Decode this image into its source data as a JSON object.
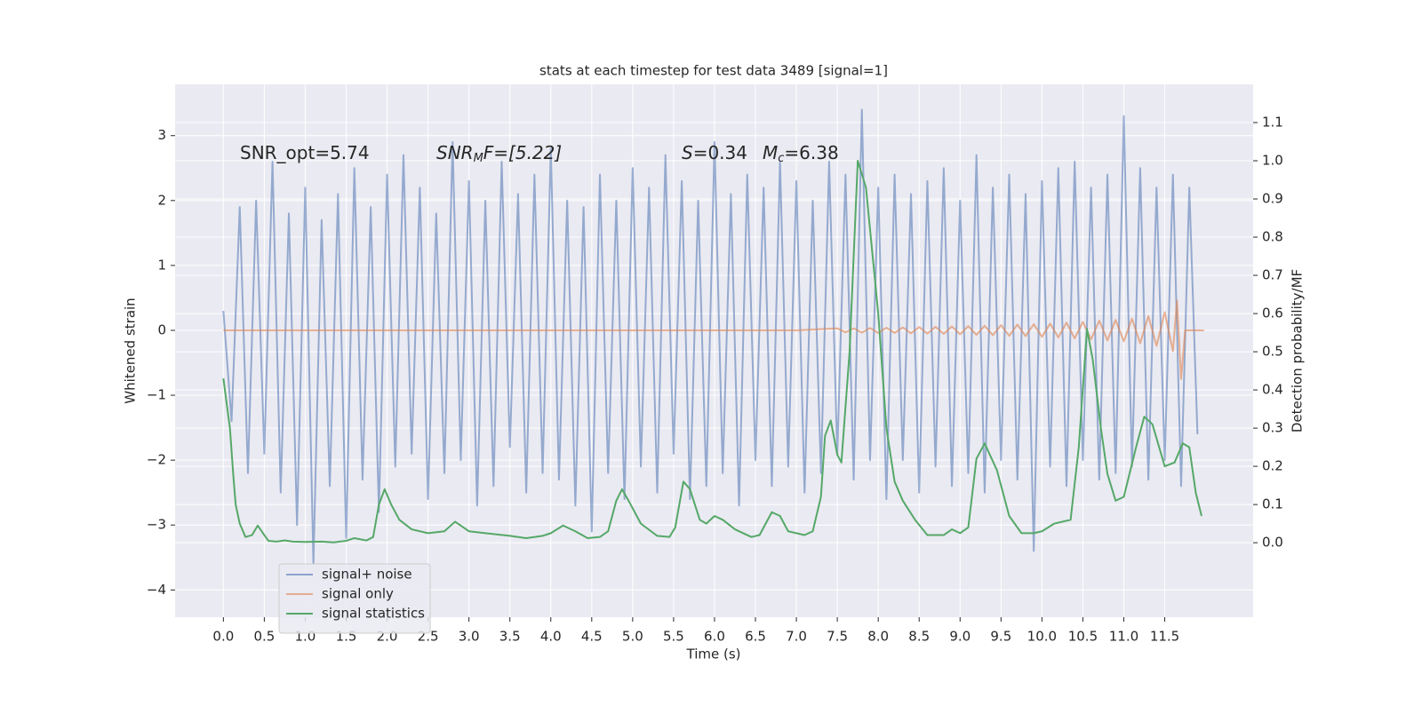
{
  "chart_data": {
    "type": "line",
    "title": "stats at each timestep for test data 3489 [signal=1]",
    "xlabel": "Time (s)",
    "ylabel": "Whitened strain",
    "y2label": "Detection probability/MF",
    "annotations": [
      [
        "SNR_opt=5.74"
      ],
      [
        "SNR",
        "M",
        "F=[5.22]"
      ],
      [
        "S",
        "=0.34"
      ],
      [
        "M",
        "c",
        "=6.38"
      ]
    ],
    "xlim": [
      -0.59,
      12.58
    ],
    "ylim": [
      -4.42,
      3.79
    ],
    "y2lim": [
      -0.195,
      1.2
    ],
    "xticks": [
      {
        "value": 0,
        "label": "0.0"
      },
      0.5,
      {
        "value": 1,
        "label": "1.0"
      },
      1.5,
      {
        "value": 2,
        "label": "2.0"
      },
      2.5,
      {
        "value": 3,
        "label": "3.0"
      },
      3.5,
      {
        "value": 4,
        "label": "4.0"
      },
      4.5,
      {
        "value": 5,
        "label": "5.0"
      },
      5.5,
      {
        "value": 6,
        "label": "6.0"
      },
      6.5,
      {
        "value": 7,
        "label": "7.0"
      },
      7.5,
      {
        "value": 8,
        "label": "8.0"
      },
      8.5,
      {
        "value": 9,
        "label": "9.0"
      },
      9.5,
      {
        "value": 10,
        "label": "10.0"
      },
      10.5,
      {
        "value": 11,
        "label": "11.0"
      },
      11.5
    ],
    "yticks": [
      {
        "value": -4,
        "label": "−4"
      },
      {
        "value": -3,
        "label": "−3"
      },
      {
        "value": -2,
        "label": "−2"
      },
      {
        "value": -1,
        "label": "−1"
      },
      0,
      1,
      2,
      3
    ],
    "y2ticks": [
      {
        "value": 0,
        "label": "0.0"
      },
      0.1,
      0.2,
      0.3,
      0.4,
      0.5,
      0.6,
      0.7,
      0.8,
      0.9,
      {
        "value": 1,
        "label": "1.0"
      },
      1.1
    ],
    "grid": true,
    "legend": "lower left",
    "series": [
      {
        "name": "signal+ noise",
        "color": "#4c72b0",
        "x": [
          0,
          0.1,
          0.2,
          0.3,
          0.4,
          0.5,
          0.6,
          0.7,
          0.8,
          0.9,
          1,
          1.1,
          1.2,
          1.3,
          1.4,
          1.5,
          1.6,
          1.7,
          1.8,
          1.9,
          2,
          2.1,
          2.2,
          2.3,
          2.4,
          2.5,
          2.6,
          2.7,
          2.8,
          2.9,
          3,
          3.1,
          3.2,
          3.3,
          3.4,
          3.5,
          3.6,
          3.7,
          3.8,
          3.9,
          4,
          4.1,
          4.2,
          4.3,
          4.4,
          4.5,
          4.6,
          4.7,
          4.8,
          4.9,
          5,
          5.1,
          5.2,
          5.3,
          5.4,
          5.5,
          5.6,
          5.7,
          5.8,
          5.9,
          6,
          6.1,
          6.2,
          6.3,
          6.4,
          6.5,
          6.6,
          6.7,
          6.8,
          6.9,
          7,
          7.1,
          7.2,
          7.3,
          7.4,
          7.5,
          7.6,
          7.7,
          7.8,
          7.9,
          8,
          8.1,
          8.2,
          8.3,
          8.4,
          8.5,
          8.6,
          8.7,
          8.8,
          8.9,
          9,
          9.1,
          9.2,
          9.3,
          9.4,
          9.5,
          9.6,
          9.7,
          9.8,
          9.9,
          10,
          10.1,
          10.2,
          10.3,
          10.4,
          10.5,
          10.6,
          10.7,
          10.8,
          10.9,
          11,
          11.1,
          11.2,
          11.3,
          11.4,
          11.5,
          11.6,
          11.7,
          11.8,
          11.9
        ],
        "values": [
          0.3,
          -1.4,
          1.9,
          -2.2,
          2.0,
          -1.9,
          2.6,
          -2.5,
          1.8,
          -3.0,
          2.2,
          -3.6,
          1.7,
          -2.4,
          2.1,
          -3.2,
          2.5,
          -2.3,
          1.9,
          -2.8,
          2.4,
          -2.1,
          2.7,
          -1.9,
          2.2,
          -2.6,
          1.8,
          -2.2,
          2.9,
          -2.0,
          2.3,
          -2.7,
          2.0,
          -2.4,
          2.6,
          -1.8,
          2.1,
          -2.5,
          2.4,
          -2.2,
          2.8,
          -2.3,
          2.0,
          -2.7,
          1.9,
          -3.1,
          2.4,
          -2.2,
          2.0,
          -2.6,
          2.5,
          -2.1,
          2.2,
          -2.5,
          2.7,
          -1.9,
          2.3,
          -2.6,
          2.0,
          -2.4,
          2.9,
          -2.2,
          2.1,
          -2.7,
          2.4,
          -2.0,
          2.2,
          -2.4,
          2.6,
          -2.1,
          2.3,
          -2.5,
          2.0,
          -2.2,
          2.6,
          -1.9,
          2.4,
          -2.3,
          3.4,
          -2.0,
          2.2,
          -2.6,
          2.4,
          -2.0,
          2.1,
          -2.5,
          2.3,
          -2.1,
          2.5,
          -2.4,
          2.0,
          -2.2,
          2.7,
          -2.5,
          2.2,
          -2.0,
          2.4,
          -2.3,
          2.1,
          -3.4,
          2.3,
          -2.1,
          2.5,
          -2.4,
          2.6,
          -2.0,
          2.2,
          -2.3,
          2.4,
          -2.2,
          3.3,
          -2.1,
          2.5,
          -2.3,
          2.2,
          -2.0,
          2.4,
          -2.4,
          2.2,
          -1.6
        ]
      },
      {
        "name": "signal only",
        "color": "#dd8452",
        "x": [
          0,
          7,
          7.5,
          7.6,
          7.7,
          7.8,
          7.9,
          8,
          8.1,
          8.2,
          8.3,
          8.4,
          8.5,
          8.6,
          8.7,
          8.8,
          8.9,
          9,
          9.1,
          9.2,
          9.3,
          9.4,
          9.5,
          9.6,
          9.7,
          9.8,
          9.9,
          10,
          10.1,
          10.2,
          10.3,
          10.4,
          10.5,
          10.6,
          10.7,
          10.8,
          10.9,
          11,
          11.1,
          11.2,
          11.3,
          11.4,
          11.5,
          11.6,
          11.65,
          11.7,
          11.75,
          11.98
        ],
        "values": [
          0,
          0,
          0.03,
          -0.03,
          0.03,
          -0.035,
          0.035,
          -0.04,
          0.04,
          -0.04,
          0.045,
          -0.045,
          0.05,
          -0.05,
          0.055,
          -0.055,
          0.06,
          -0.06,
          0.065,
          -0.07,
          0.07,
          -0.075,
          0.08,
          -0.085,
          0.09,
          -0.09,
          0.095,
          -0.1,
          0.105,
          -0.11,
          0.12,
          -0.125,
          0.13,
          -0.14,
          0.15,
          -0.155,
          0.16,
          -0.17,
          0.18,
          -0.2,
          0.22,
          -0.24,
          0.28,
          -0.32,
          0.46,
          -0.75,
          0,
          0
        ]
      },
      {
        "name": "signal statistics",
        "color": "#55a868",
        "axis": "y2",
        "x": [
          0,
          0.08,
          0.12,
          0.15,
          0.2,
          0.27,
          0.35,
          0.42,
          0.5,
          0.55,
          0.65,
          0.75,
          0.85,
          1,
          1.2,
          1.35,
          1.5,
          1.6,
          1.75,
          1.83,
          1.9,
          1.97,
          2.05,
          2.15,
          2.3,
          2.5,
          2.7,
          2.83,
          3,
          3.2,
          3.5,
          3.7,
          3.9,
          4,
          4.15,
          4.3,
          4.45,
          4.6,
          4.7,
          4.8,
          4.87,
          4.95,
          5.1,
          5.3,
          5.45,
          5.52,
          5.62,
          5.7,
          5.82,
          5.9,
          6,
          6.1,
          6.25,
          6.45,
          6.55,
          6.7,
          6.8,
          6.9,
          7.1,
          7.2,
          7.3,
          7.35,
          7.42,
          7.5,
          7.55,
          7.65,
          7.75,
          7.85,
          8,
          8.1,
          8.2,
          8.3,
          8.45,
          8.6,
          8.8,
          8.9,
          9,
          9.1,
          9.2,
          9.3,
          9.45,
          9.6,
          9.75,
          9.9,
          10,
          10.15,
          10.35,
          10.45,
          10.55,
          10.62,
          10.72,
          10.8,
          10.9,
          11,
          11.15,
          11.25,
          11.35,
          11.5,
          11.62,
          11.72,
          11.8,
          11.88,
          11.95
        ],
        "values": [
          0.43,
          0.3,
          0.18,
          0.1,
          0.05,
          0.015,
          0.02,
          0.045,
          0.02,
          0.005,
          0.003,
          0.006,
          0.003,
          0.002,
          0.003,
          0.001,
          0.005,
          0.012,
          0.006,
          0.015,
          0.1,
          0.14,
          0.1,
          0.06,
          0.035,
          0.025,
          0.03,
          0.055,
          0.03,
          0.025,
          0.018,
          0.012,
          0.018,
          0.025,
          0.045,
          0.03,
          0.012,
          0.015,
          0.03,
          0.11,
          0.14,
          0.11,
          0.05,
          0.018,
          0.015,
          0.04,
          0.16,
          0.14,
          0.06,
          0.05,
          0.07,
          0.06,
          0.035,
          0.015,
          0.02,
          0.08,
          0.07,
          0.03,
          0.02,
          0.03,
          0.12,
          0.28,
          0.32,
          0.23,
          0.21,
          0.5,
          1.0,
          0.93,
          0.6,
          0.3,
          0.16,
          0.11,
          0.06,
          0.02,
          0.02,
          0.035,
          0.025,
          0.04,
          0.22,
          0.26,
          0.19,
          0.07,
          0.025,
          0.025,
          0.03,
          0.05,
          0.06,
          0.25,
          0.56,
          0.48,
          0.3,
          0.18,
          0.11,
          0.12,
          0.25,
          0.33,
          0.31,
          0.2,
          0.21,
          0.26,
          0.25,
          0.13,
          0.07
        ]
      }
    ]
  }
}
